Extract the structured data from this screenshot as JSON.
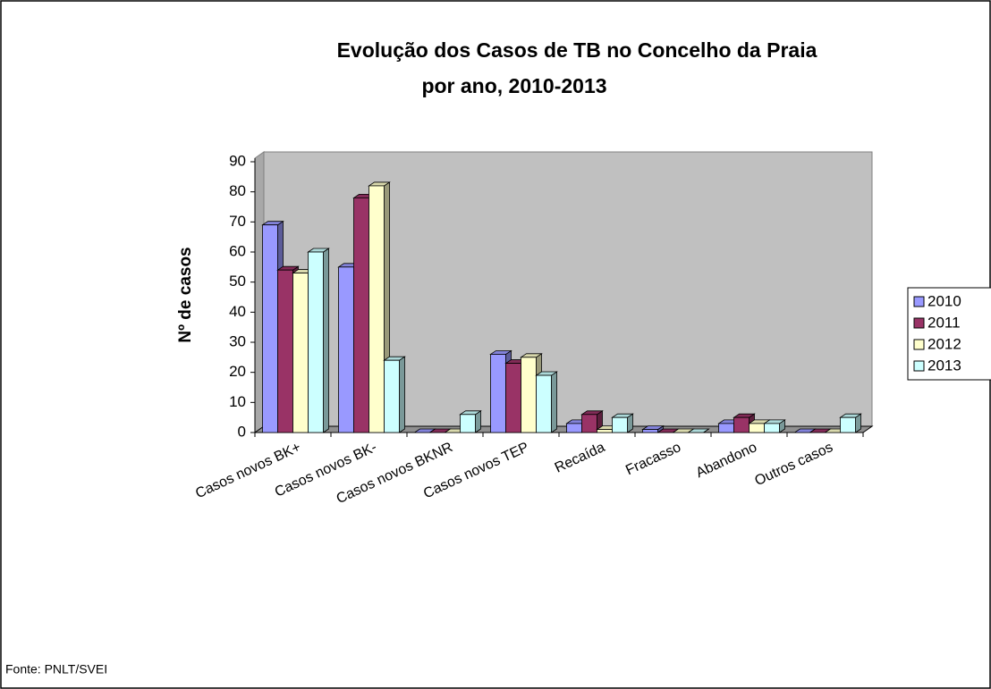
{
  "chart_data": {
    "type": "bar3d",
    "title": "Evolução dos Casos de TB no Concelho da Praia",
    "subtitle": "por ano,  2010-2013",
    "y_label": "Nº de casos",
    "source": "Fonte: PNLT/SVEI",
    "categories": [
      "Casos novos BK+",
      "Casos novos BK-",
      "Casos novos BKNR",
      "Casos novos TEP",
      "Recaída",
      "Fracasso",
      "Abandono",
      "Outros casos"
    ],
    "series": [
      {
        "name": "2010",
        "color": "#9999ff",
        "values": [
          69,
          55,
          0,
          26,
          3,
          1,
          3,
          0
        ]
      },
      {
        "name": "2011",
        "color": "#993366",
        "values": [
          54,
          78,
          0,
          23,
          6,
          0,
          5,
          0
        ]
      },
      {
        "name": "2012",
        "color": "#ffffcc",
        "values": [
          53,
          82,
          0,
          25,
          1,
          0,
          3,
          0
        ]
      },
      {
        "name": "2013",
        "color": "#ccffff",
        "values": [
          60,
          24,
          6,
          19,
          5,
          0,
          3,
          5
        ]
      }
    ],
    "ylim": [
      0,
      90
    ],
    "yticks": [
      0,
      10,
      20,
      30,
      40,
      50,
      60,
      70,
      80,
      90
    ],
    "grid": false,
    "legend": "right"
  }
}
